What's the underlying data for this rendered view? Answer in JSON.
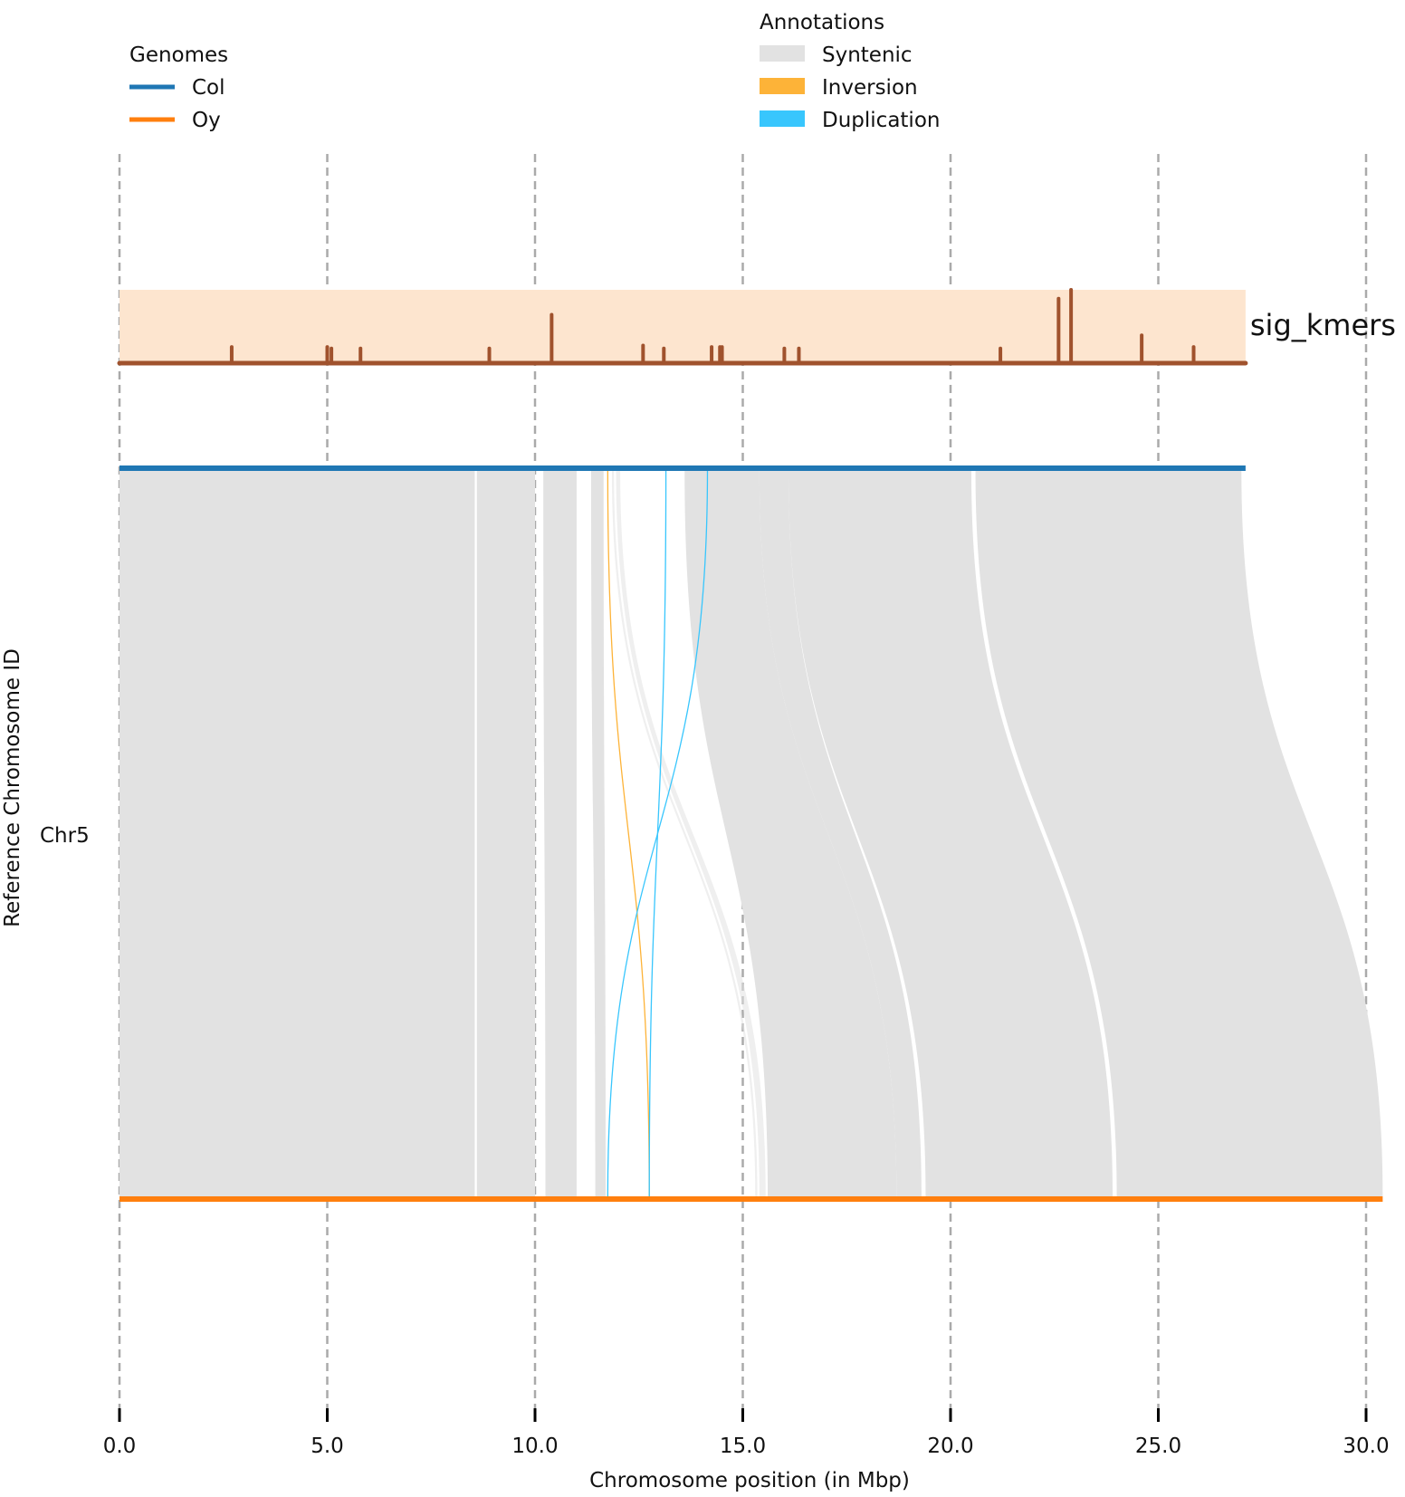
{
  "chart_data": {
    "type": "synteny",
    "title": "",
    "xlabel": "Chromosome position (in Mbp)",
    "ylabel": "Reference Chromosome ID",
    "chromosome": "Chr5",
    "xlim": [
      0,
      30.4
    ],
    "x_ticks": [
      0,
      5,
      10,
      15,
      20,
      25,
      30
    ],
    "x_tick_labels": [
      "0.0",
      "5.0",
      "10.0",
      "15.0",
      "20.0",
      "25.0",
      "30.0"
    ],
    "grid": "vertical dashed lines at ticks",
    "legend_genomes": {
      "title": "Genomes",
      "items": [
        {
          "label": "Col",
          "color": "#1f77b4"
        },
        {
          "label": "Oy",
          "color": "#ff7f0e"
        }
      ]
    },
    "legend_annotations": {
      "title": "Annotations",
      "items": [
        {
          "label": "Syntenic",
          "color": "#e2e2e2"
        },
        {
          "label": "Inversion",
          "color": "#fdb338"
        },
        {
          "label": "Duplication",
          "color": "#38c6fd"
        }
      ]
    },
    "genomes": [
      {
        "name": "Col",
        "color": "#1f77b4",
        "start": 0,
        "end": 27.1
      },
      {
        "name": "Oy",
        "color": "#ff7f0e",
        "start": 0,
        "end": 30.4
      }
    ],
    "syntenic_blocks": [
      {
        "ref": [
          0.0,
          8.55
        ],
        "qry": [
          0.0,
          8.55
        ]
      },
      {
        "ref": [
          8.6,
          10.0
        ],
        "qry": [
          8.6,
          10.0
        ]
      },
      {
        "ref": [
          10.2,
          11.0
        ],
        "qry": [
          10.25,
          11.0
        ]
      },
      {
        "ref": [
          11.35,
          11.65
        ],
        "qry": [
          11.45,
          11.7
        ]
      },
      {
        "ref": [
          13.6,
          15.4
        ],
        "qry": [
          15.6,
          18.7
        ]
      },
      {
        "ref": [
          15.4,
          16.1
        ],
        "qry": [
          18.7,
          19.3
        ]
      },
      {
        "ref": [
          16.1,
          20.5
        ],
        "qry": [
          19.4,
          23.9
        ]
      },
      {
        "ref": [
          20.6,
          27.0
        ],
        "qry": [
          24.0,
          30.4
        ]
      }
    ],
    "faint_syntenic_links": [
      {
        "ref": [
          11.95,
          12.05
        ],
        "qry": [
          15.4,
          15.55
        ]
      },
      {
        "ref": [
          11.85,
          11.9
        ],
        "qry": [
          15.3,
          15.35
        ]
      }
    ],
    "inversions": [
      {
        "ref": 11.75,
        "qry": 12.75
      }
    ],
    "duplications": [
      {
        "ref": 14.15,
        "qry": 11.75
      },
      {
        "ref": 13.15,
        "qry": 12.75
      }
    ],
    "tracks": [
      {
        "name": "sig_kmers",
        "background_color": "#fde5cf",
        "line_color": "#a0522d",
        "range": [
          0,
          27.1
        ],
        "peaks": [
          {
            "x": 2.7,
            "value": 0.22
          },
          {
            "x": 5.0,
            "value": 0.22
          },
          {
            "x": 5.1,
            "value": 0.2
          },
          {
            "x": 5.8,
            "value": 0.2
          },
          {
            "x": 8.9,
            "value": 0.2
          },
          {
            "x": 10.4,
            "value": 0.66
          },
          {
            "x": 12.6,
            "value": 0.24
          },
          {
            "x": 13.1,
            "value": 0.2
          },
          {
            "x": 14.25,
            "value": 0.22
          },
          {
            "x": 14.45,
            "value": 0.22
          },
          {
            "x": 14.5,
            "value": 0.22
          },
          {
            "x": 16.0,
            "value": 0.2
          },
          {
            "x": 16.35,
            "value": 0.2
          },
          {
            "x": 21.2,
            "value": 0.2
          },
          {
            "x": 22.6,
            "value": 0.88
          },
          {
            "x": 22.9,
            "value": 1.0
          },
          {
            "x": 24.6,
            "value": 0.38
          },
          {
            "x": 25.85,
            "value": 0.22
          }
        ]
      }
    ]
  }
}
